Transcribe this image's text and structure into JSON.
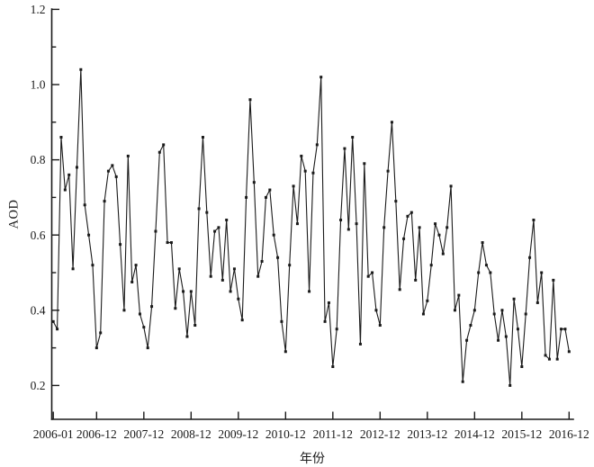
{
  "page": {
    "background": "#ffffff",
    "text_color": "#1a1a1a"
  },
  "chart_data": {
    "type": "line",
    "title": "",
    "xlabel": "年份",
    "ylabel": "AOD",
    "x_start": "2006-01",
    "x_end": "2016-12",
    "x_tick_labels": [
      "2006-01",
      "2006-12",
      "2007-12",
      "2008-12",
      "2009-12",
      "2010-12",
      "2011-12",
      "2012-12",
      "2013-12",
      "2014-12",
      "2015-12",
      "2016-12"
    ],
    "y_ticks": [
      0.2,
      0.4,
      0.6,
      0.8,
      1.0,
      1.2
    ],
    "y_minor_ticks": [
      0.3,
      0.5,
      0.7,
      0.9,
      1.1
    ],
    "ylim": [
      0.11,
      1.2
    ],
    "grid": false,
    "legend": "none",
    "line_color": "#1a1a1a",
    "marker": "square",
    "series": [
      {
        "name": "AOD",
        "values": [
          0.37,
          0.35,
          0.86,
          0.72,
          0.76,
          0.51,
          0.78,
          1.04,
          0.68,
          0.6,
          0.52,
          0.3,
          0.34,
          0.69,
          0.77,
          0.785,
          0.755,
          0.575,
          0.4,
          0.81,
          0.475,
          0.52,
          0.39,
          0.355,
          0.3,
          0.41,
          0.61,
          0.82,
          0.84,
          0.58,
          0.58,
          0.405,
          0.51,
          0.45,
          0.33,
          0.45,
          0.36,
          0.67,
          0.86,
          0.66,
          0.49,
          0.61,
          0.62,
          0.48,
          0.64,
          0.45,
          0.51,
          0.43,
          0.374,
          0.7,
          0.96,
          0.74,
          0.49,
          0.53,
          0.7,
          0.72,
          0.6,
          0.54,
          0.37,
          0.29,
          0.52,
          0.73,
          0.63,
          0.81,
          0.77,
          0.45,
          0.765,
          0.84,
          1.02,
          0.37,
          0.42,
          0.25,
          0.35,
          0.64,
          0.83,
          0.615,
          0.86,
          0.63,
          0.31,
          0.79,
          0.49,
          0.5,
          0.4,
          0.36,
          0.62,
          0.77,
          0.9,
          0.69,
          0.455,
          0.59,
          0.65,
          0.66,
          0.48,
          0.62,
          0.39,
          0.425,
          0.52,
          0.63,
          0.6,
          0.55,
          0.62,
          0.73,
          0.4,
          0.44,
          0.21,
          0.32,
          0.36,
          0.4,
          0.5,
          0.58,
          0.52,
          0.5,
          0.39,
          0.32,
          0.4,
          0.33,
          0.2,
          0.43,
          0.35,
          0.25,
          0.39,
          0.54,
          0.64,
          0.42,
          0.5,
          0.28,
          0.27,
          0.48,
          0.27,
          0.35,
          0.35,
          0.29
        ]
      }
    ]
  }
}
